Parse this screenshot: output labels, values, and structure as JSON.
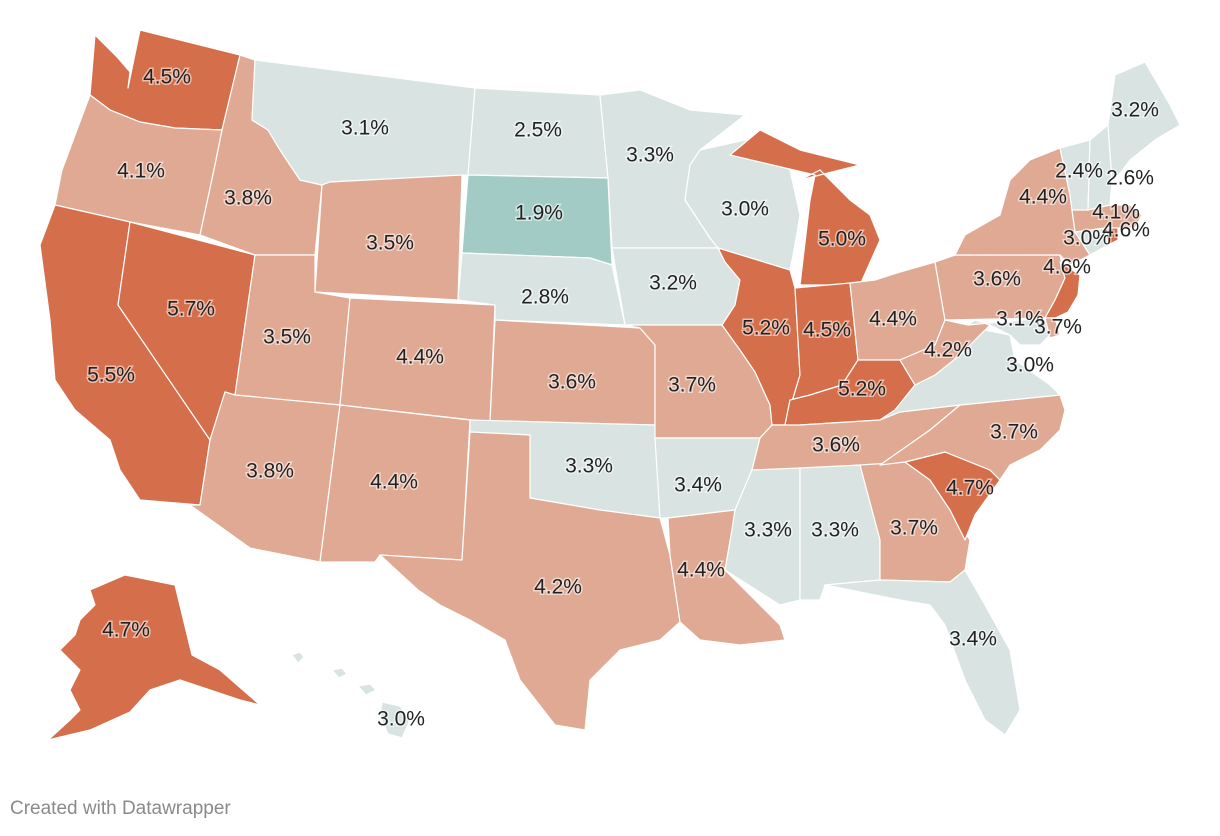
{
  "credit": "Created with Datawrapper",
  "legend_colors": {
    "very_low": "#a3cbc5",
    "low": "#d8e3e2",
    "mid": "#dfa994",
    "high": "#d46e4b"
  },
  "states": [
    {
      "id": "WA",
      "label": "4.5%",
      "value": 4.5
    },
    {
      "id": "OR",
      "label": "4.1%",
      "value": 4.1
    },
    {
      "id": "CA",
      "label": "5.5%",
      "value": 5.5
    },
    {
      "id": "NV",
      "label": "5.7%",
      "value": 5.7
    },
    {
      "id": "ID",
      "label": "3.8%",
      "value": 3.8
    },
    {
      "id": "MT",
      "label": "3.1%",
      "value": 3.1
    },
    {
      "id": "WY",
      "label": "3.5%",
      "value": 3.5
    },
    {
      "id": "UT",
      "label": "3.5%",
      "value": 3.5
    },
    {
      "id": "AZ",
      "label": "3.8%",
      "value": 3.8
    },
    {
      "id": "CO",
      "label": "4.4%",
      "value": 4.4
    },
    {
      "id": "NM",
      "label": "4.4%",
      "value": 4.4
    },
    {
      "id": "ND",
      "label": "2.5%",
      "value": 2.5
    },
    {
      "id": "SD",
      "label": "1.9%",
      "value": 1.9
    },
    {
      "id": "NE",
      "label": "2.8%",
      "value": 2.8
    },
    {
      "id": "KS",
      "label": "3.6%",
      "value": 3.6
    },
    {
      "id": "OK",
      "label": "3.3%",
      "value": 3.3
    },
    {
      "id": "TX",
      "label": "4.2%",
      "value": 4.2
    },
    {
      "id": "MN",
      "label": "3.3%",
      "value": 3.3
    },
    {
      "id": "IA",
      "label": "3.2%",
      "value": 3.2
    },
    {
      "id": "MO",
      "label": "3.7%",
      "value": 3.7
    },
    {
      "id": "AR",
      "label": "3.4%",
      "value": 3.4
    },
    {
      "id": "LA",
      "label": "4.4%",
      "value": 4.4
    },
    {
      "id": "WI",
      "label": "3.0%",
      "value": 3.0
    },
    {
      "id": "IL",
      "label": "5.2%",
      "value": 5.2
    },
    {
      "id": "MI",
      "label": "5.0%",
      "value": 5.0
    },
    {
      "id": "IN",
      "label": "4.5%",
      "value": 4.5
    },
    {
      "id": "OH",
      "label": "4.4%",
      "value": 4.4
    },
    {
      "id": "KY",
      "label": "5.2%",
      "value": 5.2
    },
    {
      "id": "TN",
      "label": "3.6%",
      "value": 3.6
    },
    {
      "id": "MS",
      "label": "3.3%",
      "value": 3.3
    },
    {
      "id": "AL",
      "label": "3.3%",
      "value": 3.3
    },
    {
      "id": "GA",
      "label": "3.7%",
      "value": 3.7
    },
    {
      "id": "FL",
      "label": "3.4%",
      "value": 3.4
    },
    {
      "id": "SC",
      "label": "4.7%",
      "value": 4.7
    },
    {
      "id": "NC",
      "label": "3.7%",
      "value": 3.7
    },
    {
      "id": "VA",
      "label": "3.0%",
      "value": 3.0
    },
    {
      "id": "WV",
      "label": "4.2%",
      "value": 4.2
    },
    {
      "id": "PA",
      "label": "3.6%",
      "value": 3.6
    },
    {
      "id": "NY",
      "label": "4.4%",
      "value": 4.4
    },
    {
      "id": "NJ",
      "label": "4.6%",
      "value": 4.6
    },
    {
      "id": "MD",
      "label": "3.1%",
      "value": 3.1
    },
    {
      "id": "DE",
      "label": "3.7%",
      "value": 3.7
    },
    {
      "id": "CT",
      "label": "3.0%",
      "value": 3.0
    },
    {
      "id": "RI",
      "label": "4.6%",
      "value": 4.6
    },
    {
      "id": "MA",
      "label": "4.1%",
      "value": 4.1
    },
    {
      "id": "VT",
      "label": "2.4%",
      "value": 2.4
    },
    {
      "id": "NH",
      "label": "2.6%",
      "value": 2.6
    },
    {
      "id": "ME",
      "label": "3.2%",
      "value": 3.2
    },
    {
      "id": "AK",
      "label": "4.7%",
      "value": 4.7
    },
    {
      "id": "HI",
      "label": "3.0%",
      "value": 3.0
    }
  ]
}
